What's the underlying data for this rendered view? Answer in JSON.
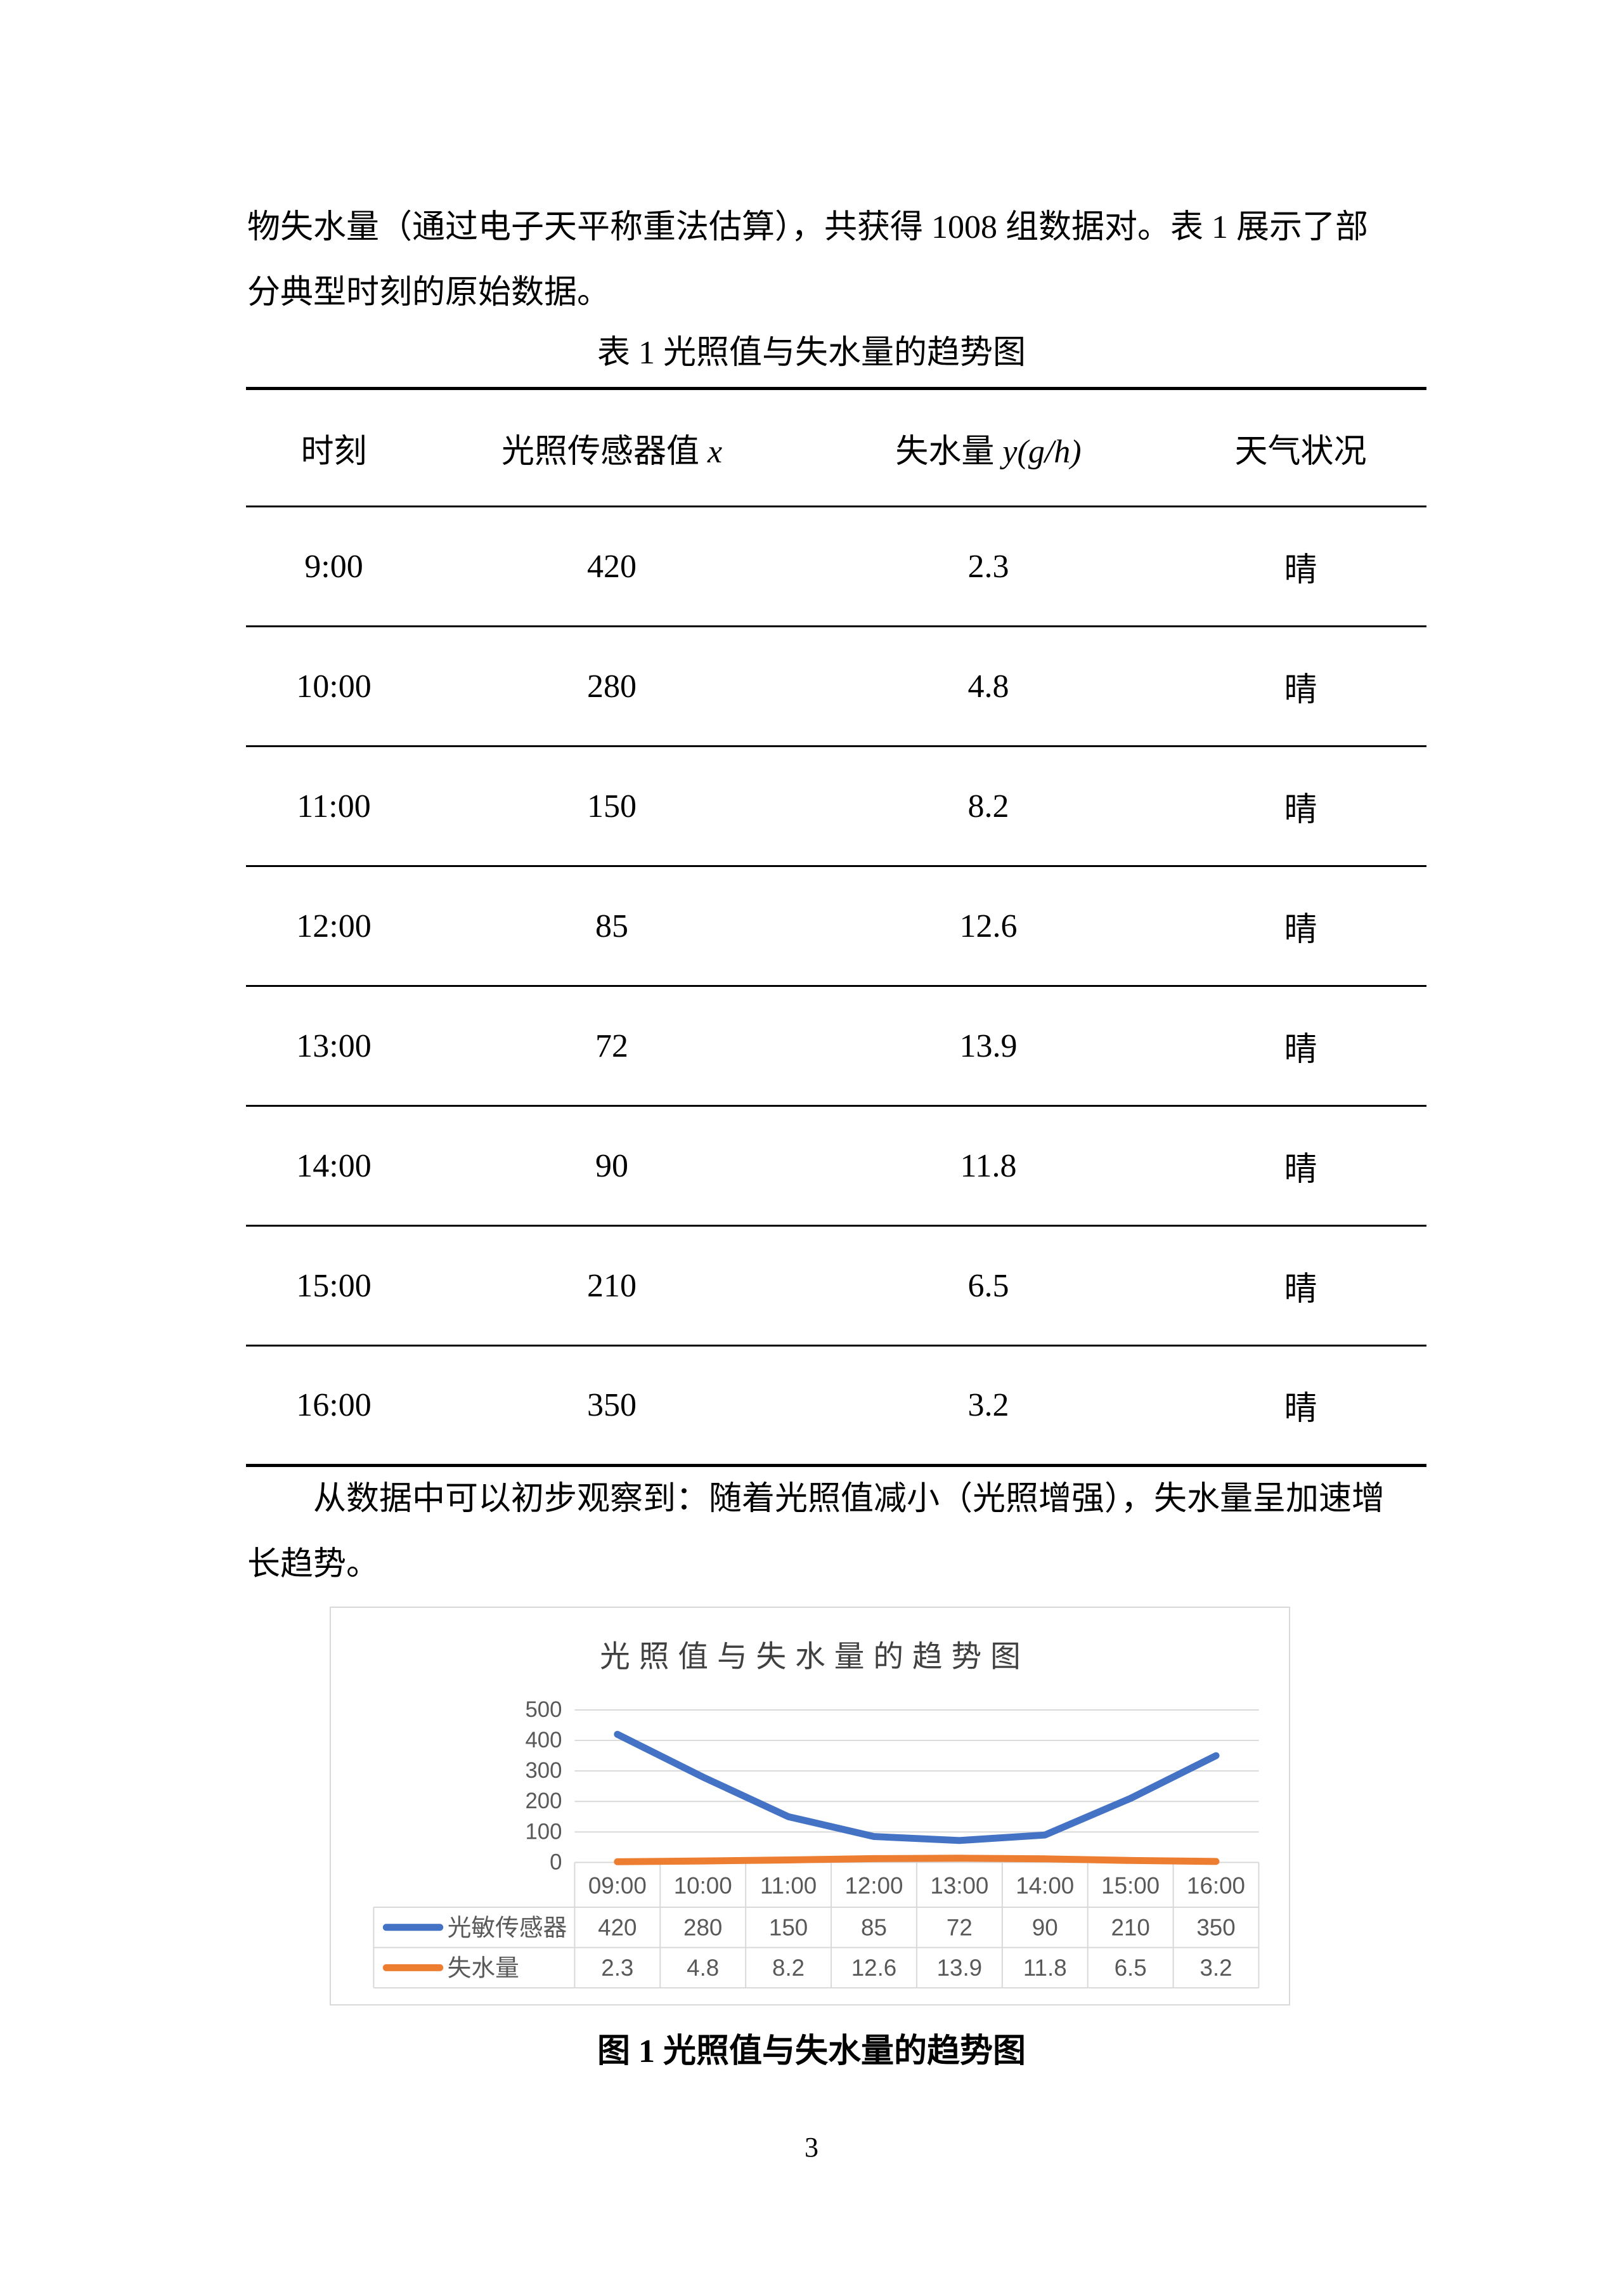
{
  "page_number": "3",
  "paragraph_top": {
    "lines": [
      "物失水量（通过电子天平称重法估算），共获得 1008 组数据对。表 1 展示了部",
      "分典型时刻的原始数据。"
    ]
  },
  "table": {
    "title": "表 1 光照值与失水量的趋势图",
    "headers": [
      {
        "text": "时刻",
        "math": ""
      },
      {
        "text": "光照传感器值 ",
        "math": "x"
      },
      {
        "text": "失水量 ",
        "math": "y(g/h)"
      },
      {
        "text": "天气状况",
        "math": ""
      }
    ],
    "rows": [
      [
        "9:00",
        "420",
        "2.3",
        "晴"
      ],
      [
        "10:00",
        "280",
        "4.8",
        "晴"
      ],
      [
        "11:00",
        "150",
        "8.2",
        "晴"
      ],
      [
        "12:00",
        "85",
        "12.6",
        "晴"
      ],
      [
        "13:00",
        "72",
        "13.9",
        "晴"
      ],
      [
        "14:00",
        "90",
        "11.8",
        "晴"
      ],
      [
        "15:00",
        "210",
        "6.5",
        "晴"
      ],
      [
        "16:00",
        "350",
        "3.2",
        "晴"
      ]
    ]
  },
  "paragraph_observation": {
    "lines": [
      "从数据中可以初步观察到：随着光照值减小（光照增强），失水量呈加速增",
      "长趋势。"
    ]
  },
  "figure": {
    "caption": "图 1 光照值与失水量的趋势图"
  },
  "chart_data": {
    "type": "line",
    "title": "光照值与失水量的趋势图",
    "categories": [
      "09:00",
      "10:00",
      "11:00",
      "12:00",
      "13:00",
      "14:00",
      "15:00",
      "16:00"
    ],
    "series": [
      {
        "name": "光敏传感器",
        "color": "#4472C4",
        "values": [
          420,
          280,
          150,
          85,
          72,
          90,
          210,
          350
        ]
      },
      {
        "name": "失水量",
        "color": "#ED7D31",
        "values": [
          2.3,
          4.8,
          8.2,
          12.6,
          13.9,
          11.8,
          6.5,
          3.2
        ]
      }
    ],
    "y_ticks": [
      0,
      100,
      200,
      300,
      400,
      500
    ],
    "ylim": [
      0,
      500
    ],
    "grid": true,
    "legend_position": "left-of-data-table",
    "data_table": true,
    "colors": {
      "grid": "#D9D9D9",
      "border": "#D9D9D9",
      "axis_text": "#595959",
      "title_text": "#404040"
    }
  }
}
